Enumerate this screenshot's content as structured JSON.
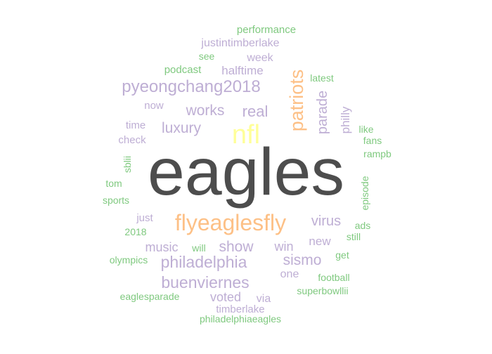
{
  "palette": {
    "dark": "#4d4d4d",
    "yellow": "#ffff99",
    "orange": "#fdc086",
    "purple": "#beaed4",
    "green": "#7fc97f"
  },
  "words": [
    {
      "text": "eagles",
      "color": "dark"
    },
    {
      "text": "nfl",
      "color": "yellow"
    },
    {
      "text": "flyeaglesfly",
      "color": "orange"
    },
    {
      "text": "patriots",
      "color": "orange"
    },
    {
      "text": "pyeongchang2018",
      "color": "purple"
    },
    {
      "text": "philadelphia",
      "color": "purple"
    },
    {
      "text": "buenviernes",
      "color": "purple"
    },
    {
      "text": "real",
      "color": "purple"
    },
    {
      "text": "works",
      "color": "purple"
    },
    {
      "text": "luxury",
      "color": "purple"
    },
    {
      "text": "show",
      "color": "purple"
    },
    {
      "text": "sismo",
      "color": "purple"
    },
    {
      "text": "virus",
      "color": "purple"
    },
    {
      "text": "parade",
      "color": "purple"
    },
    {
      "text": "music",
      "color": "purple"
    },
    {
      "text": "win",
      "color": "purple"
    },
    {
      "text": "new",
      "color": "purple"
    },
    {
      "text": "voted",
      "color": "purple"
    },
    {
      "text": "halftime",
      "color": "purple"
    },
    {
      "text": "philly",
      "color": "purple"
    },
    {
      "text": "justintimberlake",
      "color": "purple"
    },
    {
      "text": "week",
      "color": "purple"
    },
    {
      "text": "time",
      "color": "purple"
    },
    {
      "text": "now",
      "color": "purple"
    },
    {
      "text": "check",
      "color": "purple"
    },
    {
      "text": "just",
      "color": "purple"
    },
    {
      "text": "one",
      "color": "purple"
    },
    {
      "text": "via",
      "color": "purple"
    },
    {
      "text": "timberlake",
      "color": "purple"
    },
    {
      "text": "performance",
      "color": "green"
    },
    {
      "text": "see",
      "color": "green"
    },
    {
      "text": "podcast",
      "color": "green"
    },
    {
      "text": "latest",
      "color": "green"
    },
    {
      "text": "like",
      "color": "green"
    },
    {
      "text": "fans",
      "color": "green"
    },
    {
      "text": "rampb",
      "color": "green"
    },
    {
      "text": "sblii",
      "color": "green"
    },
    {
      "text": "tom",
      "color": "green"
    },
    {
      "text": "sports",
      "color": "green"
    },
    {
      "text": "episode",
      "color": "green"
    },
    {
      "text": "ads",
      "color": "green"
    },
    {
      "text": "2018",
      "color": "green"
    },
    {
      "text": "still",
      "color": "green"
    },
    {
      "text": "will",
      "color": "green"
    },
    {
      "text": "get",
      "color": "green"
    },
    {
      "text": "olympics",
      "color": "green"
    },
    {
      "text": "football",
      "color": "green"
    },
    {
      "text": "superbowllii",
      "color": "green"
    },
    {
      "text": "eaglesparade",
      "color": "green"
    },
    {
      "text": "philadelphiaeagles",
      "color": "green"
    }
  ]
}
